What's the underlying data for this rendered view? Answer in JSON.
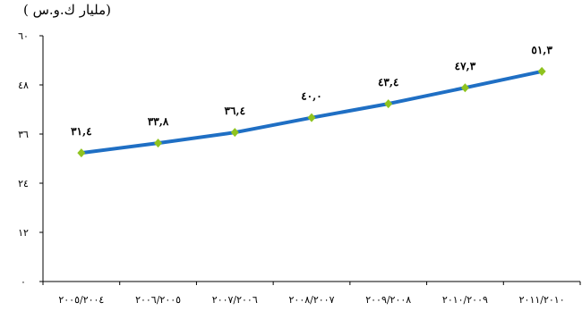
{
  "chart_data": {
    "type": "line",
    "unit_label": "(مليار ك.و.س )",
    "categories": [
      "٢٠٠٥/٢٠٠٤",
      "٢٠٠٦/٢٠٠٥",
      "٢٠٠٧/٢٠٠٦",
      "٢٠٠٨/٢٠٠٧",
      "٢٠٠٩/٢٠٠٨",
      "٢٠١٠/٢٠٠٩",
      "٢٠١١/٢٠١٠"
    ],
    "values": [
      31.4,
      33.8,
      36.4,
      40.0,
      43.4,
      47.3,
      51.3
    ],
    "data_labels": [
      "٣١,٤",
      "٣٣,٨",
      "٣٦,٤",
      "٤٠,٠",
      "٤٣,٤",
      "٤٧,٣",
      "٥١,٣"
    ],
    "ylim": [
      0,
      60
    ],
    "yticks": [
      0,
      12,
      24,
      36,
      48,
      60
    ],
    "ytick_labels": [
      "٠",
      "١٢",
      "٢٤",
      "٣٦",
      "٤٨",
      "٦٠"
    ],
    "grid": false,
    "colors": {
      "line": "#1f6fc4",
      "marker": "#8fc31f",
      "axis": "#000000"
    }
  }
}
